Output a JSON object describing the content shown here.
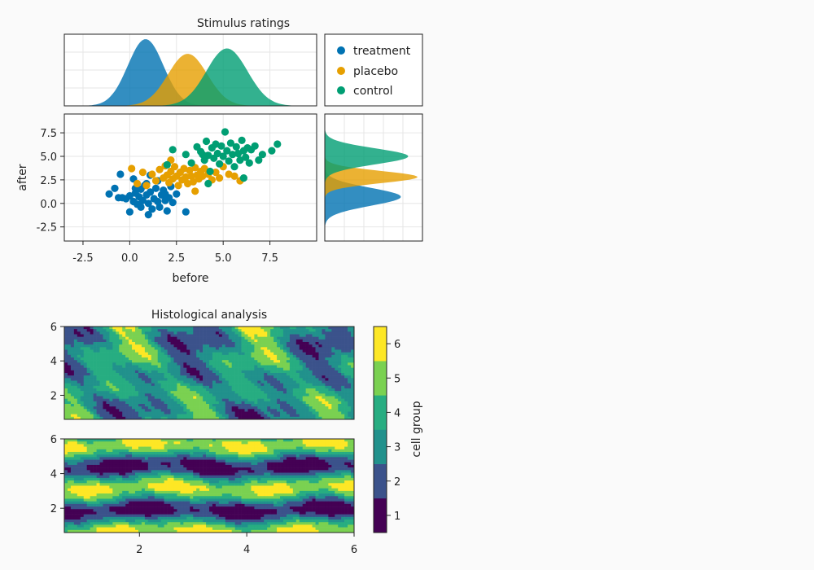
{
  "colors": {
    "treatment": "#0072b2",
    "placebo": "#e69f00",
    "control": "#009e73",
    "grid": "#e6e6e6",
    "frame": "#222222",
    "contour_levels": [
      "#440154",
      "#3b528b",
      "#21918c",
      "#27ad81",
      "#7ad151",
      "#fde725"
    ]
  },
  "chart_data": [
    {
      "type": "scatter",
      "title": "Stimulus ratings",
      "xlabel": "before",
      "ylabel": "after",
      "xlim": [
        -3.5,
        10
      ],
      "ylim": [
        -4,
        9.5
      ],
      "xticks": [
        -2.5,
        0.0,
        2.5,
        5.0,
        7.5
      ],
      "xtick_labels": [
        "-2.5",
        "0.0",
        "2.5",
        "5.0",
        "7.5"
      ],
      "yticks": [
        -2.5,
        0.0,
        2.5,
        5.0,
        7.5
      ],
      "ytick_labels": [
        "-2.5",
        "0.0",
        "2.5",
        "5.0",
        "7.5"
      ],
      "grid": true,
      "legend_position": "top-right panel",
      "series": [
        {
          "name": "treatment",
          "color": "#0072b2",
          "points": [
            [
              -1.1,
              1.0
            ],
            [
              -0.6,
              0.6
            ],
            [
              -0.4,
              0.6
            ],
            [
              -0.2,
              0.5
            ],
            [
              0.0,
              0.8
            ],
            [
              0.2,
              0.2
            ],
            [
              0.3,
              1.1
            ],
            [
              0.4,
              -0.1
            ],
            [
              0.5,
              0.7
            ],
            [
              0.6,
              1.5
            ],
            [
              0.7,
              0.3
            ],
            [
              0.8,
              1.9
            ],
            [
              0.9,
              0.9
            ],
            [
              1.0,
              0.0
            ],
            [
              1.1,
              1.2
            ],
            [
              1.2,
              -0.6
            ],
            [
              1.3,
              0.5
            ],
            [
              1.4,
              1.6
            ],
            [
              1.5,
              0.2
            ],
            [
              1.6,
              -0.4
            ],
            [
              1.7,
              0.9
            ],
            [
              1.8,
              1.4
            ],
            [
              1.9,
              0.3
            ],
            [
              2.0,
              -0.8
            ],
            [
              2.1,
              0.6
            ],
            [
              2.2,
              1.8
            ],
            [
              2.3,
              0.1
            ],
            [
              2.5,
              1.0
            ],
            [
              3.0,
              -0.9
            ],
            [
              0.0,
              -0.9
            ],
            [
              0.6,
              -0.4
            ],
            [
              1.0,
              -1.2
            ],
            [
              -0.8,
              1.6
            ],
            [
              -0.5,
              3.1
            ],
            [
              0.2,
              2.6
            ],
            [
              1.5,
              2.4
            ],
            [
              1.1,
              3.0
            ],
            [
              0.3,
              1.6
            ],
            [
              0.9,
              2.1
            ],
            [
              1.9,
              1.0
            ]
          ]
        },
        {
          "name": "placebo",
          "color": "#e69f00",
          "points": [
            [
              0.1,
              3.7
            ],
            [
              0.4,
              2.1
            ],
            [
              0.7,
              3.3
            ],
            [
              0.9,
              1.9
            ],
            [
              1.2,
              3.1
            ],
            [
              1.4,
              2.4
            ],
            [
              1.6,
              3.6
            ],
            [
              1.8,
              2.7
            ],
            [
              1.9,
              4.0
            ],
            [
              2.0,
              3.0
            ],
            [
              2.1,
              2.2
            ],
            [
              2.2,
              3.4
            ],
            [
              2.3,
              2.6
            ],
            [
              2.4,
              3.9
            ],
            [
              2.5,
              2.9
            ],
            [
              2.6,
              1.9
            ],
            [
              2.7,
              3.3
            ],
            [
              2.8,
              2.5
            ],
            [
              2.9,
              3.7
            ],
            [
              3.0,
              2.8
            ],
            [
              3.1,
              2.1
            ],
            [
              3.2,
              3.5
            ],
            [
              3.3,
              2.9
            ],
            [
              3.4,
              2.3
            ],
            [
              3.5,
              3.8
            ],
            [
              3.6,
              3.0
            ],
            [
              3.7,
              2.6
            ],
            [
              3.8,
              3.4
            ],
            [
              3.9,
              2.9
            ],
            [
              4.0,
              3.7
            ],
            [
              4.2,
              3.1
            ],
            [
              4.4,
              2.5
            ],
            [
              4.6,
              3.3
            ],
            [
              4.8,
              2.7
            ],
            [
              5.0,
              3.9
            ],
            [
              5.3,
              3.1
            ],
            [
              5.6,
              2.9
            ],
            [
              5.9,
              2.4
            ],
            [
              3.5,
              1.3
            ],
            [
              2.2,
              4.6
            ]
          ]
        },
        {
          "name": "control",
          "color": "#009e73",
          "points": [
            [
              2.0,
              4.1
            ],
            [
              2.3,
              5.7
            ],
            [
              3.0,
              5.2
            ],
            [
              3.3,
              4.3
            ],
            [
              3.6,
              6.0
            ],
            [
              3.8,
              5.5
            ],
            [
              4.0,
              4.6
            ],
            [
              4.1,
              6.6
            ],
            [
              4.2,
              5.1
            ],
            [
              4.3,
              3.4
            ],
            [
              4.4,
              5.9
            ],
            [
              4.5,
              4.8
            ],
            [
              4.6,
              6.3
            ],
            [
              4.7,
              5.3
            ],
            [
              4.8,
              4.2
            ],
            [
              4.9,
              6.1
            ],
            [
              5.0,
              5.0
            ],
            [
              5.1,
              7.6
            ],
            [
              5.2,
              5.6
            ],
            [
              5.3,
              4.5
            ],
            [
              5.4,
              6.4
            ],
            [
              5.5,
              5.2
            ],
            [
              5.6,
              3.9
            ],
            [
              5.7,
              6.0
            ],
            [
              5.8,
              5.3
            ],
            [
              5.9,
              4.6
            ],
            [
              6.0,
              6.7
            ],
            [
              6.1,
              5.6
            ],
            [
              6.2,
              4.9
            ],
            [
              6.3,
              5.9
            ],
            [
              6.4,
              4.3
            ],
            [
              6.5,
              5.7
            ],
            [
              6.7,
              6.1
            ],
            [
              6.9,
              4.6
            ],
            [
              7.1,
              5.2
            ],
            [
              7.9,
              6.3
            ],
            [
              7.6,
              5.6
            ],
            [
              6.1,
              2.7
            ],
            [
              4.2,
              2.1
            ],
            [
              3.9,
              5.2
            ]
          ]
        }
      ],
      "densities": {
        "x": [
          {
            "name": "treatment",
            "mean": 0.85,
            "sd": 0.95,
            "peak": 1.0
          },
          {
            "name": "placebo",
            "mean": 3.1,
            "sd": 1.05,
            "peak": 0.78
          },
          {
            "name": "control",
            "mean": 5.2,
            "sd": 1.1,
            "peak": 0.86
          }
        ],
        "y": [
          {
            "name": "treatment",
            "mean": 0.7,
            "sd": 0.95,
            "peak": 0.82
          },
          {
            "name": "placebo",
            "mean": 2.8,
            "sd": 0.65,
            "peak": 1.0
          },
          {
            "name": "control",
            "mean": 5.0,
            "sd": 0.85,
            "peak": 0.9
          }
        ]
      }
    },
    {
      "type": "heatmap",
      "title": "Histological analysis",
      "xlim": [
        0.6,
        6
      ],
      "ylim": [
        0.6,
        6
      ],
      "xticks": [
        2,
        4,
        6
      ],
      "xtick_labels": [
        "2",
        "4",
        "6"
      ],
      "yticks": [
        2,
        4,
        6
      ],
      "ytick_labels": [
        "2",
        "4",
        "6"
      ],
      "panels": [
        "upper",
        "lower"
      ],
      "colorbar": {
        "label": "cell group",
        "levels": [
          1,
          2,
          3,
          4,
          5,
          6
        ],
        "tick_labels": [
          "1",
          "2",
          "3",
          "4",
          "5",
          "6"
        ]
      }
    }
  ]
}
